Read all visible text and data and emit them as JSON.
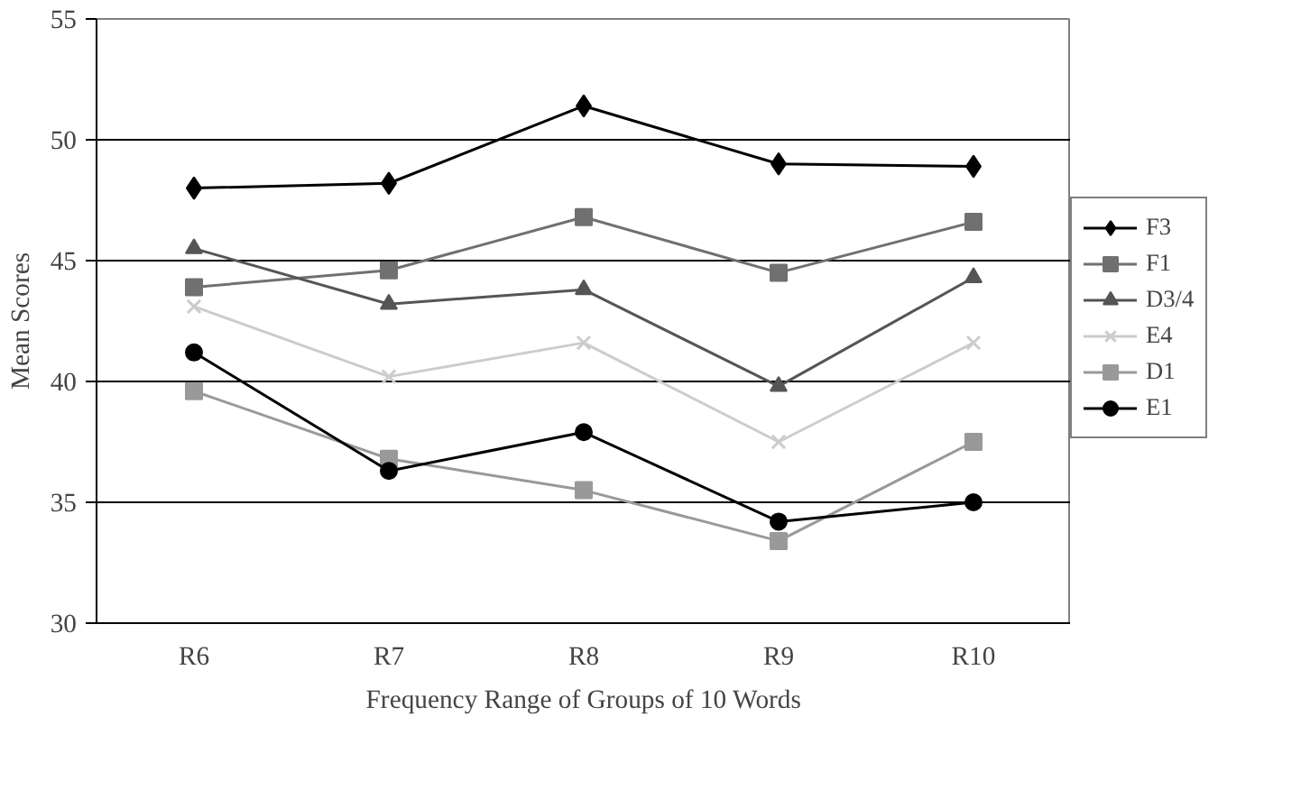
{
  "chart_data": {
    "type": "line",
    "xlabel": "Frequency Range of Groups of 10 Words",
    "ylabel": "Mean Scores",
    "categories": [
      "R6",
      "R7",
      "R8",
      "R9",
      "R10"
    ],
    "ylim": [
      30,
      55
    ],
    "yticks": [
      30,
      35,
      40,
      45,
      50,
      55
    ],
    "grid": "y",
    "legend": "right",
    "line_style": "solid",
    "series": [
      {
        "name": "F3",
        "color": "#000000",
        "marker": "diamond",
        "values": [
          48.0,
          48.2,
          51.4,
          49.0,
          48.9
        ]
      },
      {
        "name": "F1",
        "color": "#707070",
        "marker": "square",
        "values": [
          43.9,
          44.6,
          46.8,
          44.5,
          46.6
        ]
      },
      {
        "name": "D3/4",
        "color": "#555555",
        "marker": "triangle",
        "values": [
          45.5,
          43.2,
          43.8,
          39.8,
          44.3
        ]
      },
      {
        "name": "E4",
        "color": "#cccccc",
        "marker": "cross",
        "values": [
          43.1,
          40.2,
          41.6,
          37.5,
          41.6
        ]
      },
      {
        "name": "D1",
        "color": "#999999",
        "marker": "square",
        "values": [
          39.6,
          36.8,
          35.5,
          33.4,
          37.5
        ]
      },
      {
        "name": "E1",
        "color": "#000000",
        "marker": "circle",
        "values": [
          41.2,
          36.3,
          37.9,
          34.2,
          35.0
        ]
      }
    ]
  }
}
